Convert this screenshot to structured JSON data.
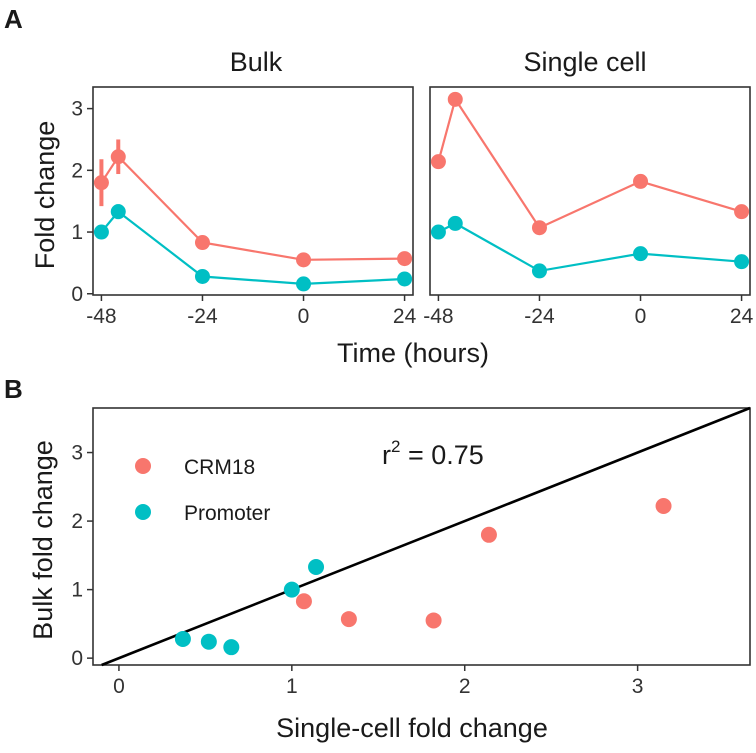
{
  "panel_labels": [
    "A",
    "B"
  ],
  "colors": {
    "crm18": "#F8766D",
    "promoter": "#00BFC4",
    "frame": "#333333",
    "line": "#000000"
  },
  "chart_data": [
    {
      "type": "line",
      "id": "bulk",
      "title": "Bulk",
      "ylabel": "Fold change",
      "xlabel": "Time (hours)",
      "x": [
        -48,
        -44,
        -24,
        0,
        24
      ],
      "xticks": [
        -48,
        -24,
        0,
        24
      ],
      "yticks": [
        0,
        1,
        2,
        3
      ],
      "xlim": [
        -50,
        26
      ],
      "ylim": [
        -0.02,
        3.35
      ],
      "series": [
        {
          "name": "CRM18",
          "color": "#F8766D",
          "values": [
            1.8,
            2.22,
            0.83,
            0.55,
            0.57
          ],
          "err": [
            0.38,
            0.28,
            0.04,
            0.04,
            0.03
          ]
        },
        {
          "name": "Promoter",
          "color": "#00BFC4",
          "values": [
            1.0,
            1.33,
            0.28,
            0.16,
            0.24
          ],
          "err": [
            0.0,
            0.12,
            0.03,
            0.02,
            0.02
          ]
        }
      ]
    },
    {
      "type": "line",
      "id": "single",
      "title": "Single cell",
      "x": [
        -48,
        -44,
        -24,
        0,
        24
      ],
      "xticks": [
        -48,
        -24,
        0,
        24
      ],
      "yticks": [
        0,
        1,
        2,
        3
      ],
      "xlim": [
        -50,
        26
      ],
      "ylim": [
        -0.02,
        3.35
      ],
      "series": [
        {
          "name": "CRM18",
          "color": "#F8766D",
          "values": [
            2.14,
            3.15,
            1.07,
            1.82,
            1.33
          ]
        },
        {
          "name": "Promoter",
          "color": "#00BFC4",
          "values": [
            1.0,
            1.14,
            0.37,
            0.65,
            0.52
          ]
        }
      ]
    },
    {
      "type": "scatter",
      "id": "correlation",
      "xlabel": "Single-cell fold change",
      "ylabel": "Bulk fold change",
      "xticks": [
        0,
        1,
        2,
        3
      ],
      "yticks": [
        0,
        1,
        2,
        3
      ],
      "xlim": [
        -0.15,
        3.65
      ],
      "ylim": [
        -0.1,
        3.65
      ],
      "annotation": {
        "r2_label": "r",
        "r2_sup": "2",
        "r2_value": " = 0.75"
      },
      "reference_line": "y = x",
      "legend": [
        {
          "label": "CRM18",
          "color": "#F8766D"
        },
        {
          "label": "Promoter",
          "color": "#00BFC4"
        }
      ],
      "series": [
        {
          "name": "CRM18",
          "color": "#F8766D",
          "x": [
            2.14,
            3.15,
            1.07,
            1.82,
            1.33
          ],
          "y": [
            1.8,
            2.22,
            0.83,
            0.55,
            0.57
          ]
        },
        {
          "name": "Promoter",
          "color": "#00BFC4",
          "x": [
            1.0,
            1.14,
            0.37,
            0.65,
            0.52
          ],
          "y": [
            1.0,
            1.33,
            0.28,
            0.16,
            0.24
          ]
        }
      ]
    }
  ]
}
